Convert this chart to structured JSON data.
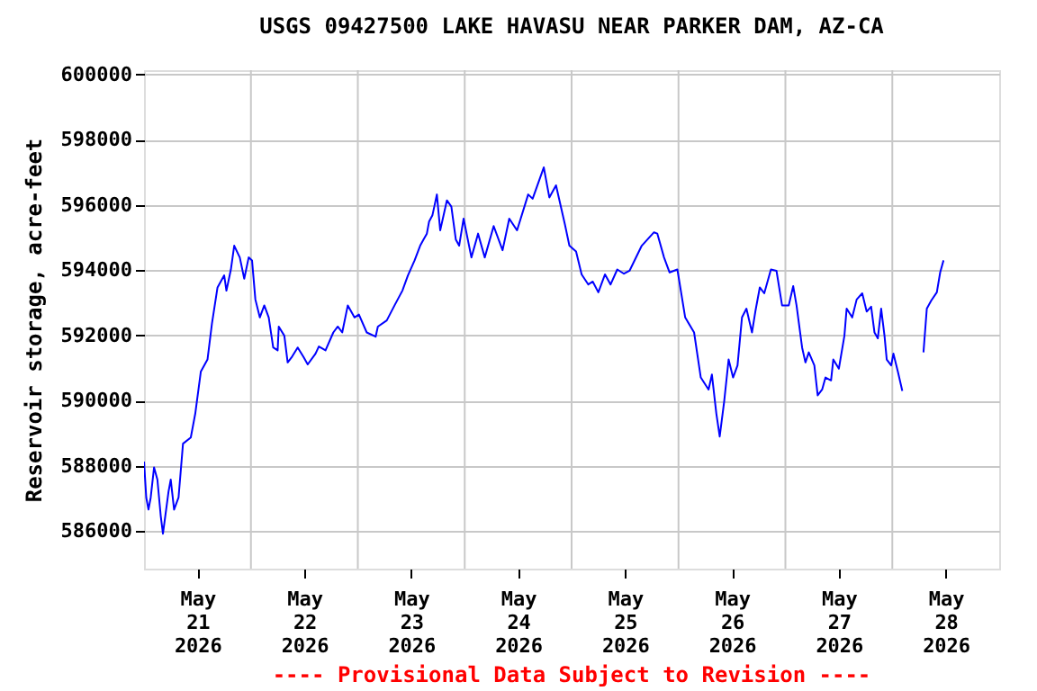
{
  "chart_data": {
    "type": "line",
    "title": "USGS 09427500 LAKE HAVASU NEAR PARKER DAM, AZ-CA",
    "ylabel": "Reservoir storage, acre-feet",
    "annotations": [
      "---- Provisional Data Subject to Revision ----"
    ],
    "xlim": [
      "2026-05-21T00:00",
      "2026-05-29T00:00"
    ],
    "xticks": [
      {
        "value": "2026-05-21T12:00",
        "label": "May\n21\n2026"
      },
      {
        "value": "2026-05-22T12:00",
        "label": "May\n22\n2026"
      },
      {
        "value": "2026-05-23T12:00",
        "label": "May\n23\n2026"
      },
      {
        "value": "2026-05-24T12:00",
        "label": "May\n24\n2026"
      },
      {
        "value": "2026-05-25T12:00",
        "label": "May\n25\n2026"
      },
      {
        "value": "2026-05-26T12:00",
        "label": "May\n26\n2026"
      },
      {
        "value": "2026-05-27T12:00",
        "label": "May\n27\n2026"
      },
      {
        "value": "2026-05-28T12:00",
        "label": "May\n28\n2026"
      },
      {
        "value": "2026-05-22T00:00",
        "label": null
      },
      {
        "value": "2026-05-23T00:00",
        "label": null
      },
      {
        "value": "2026-05-24T00:00",
        "label": null
      },
      {
        "value": "2026-05-25T00:00",
        "label": null
      },
      {
        "value": "2026-05-26T00:00",
        "label": null
      },
      {
        "value": "2026-05-27T00:00",
        "label": null
      },
      {
        "value": "2026-05-28T00:00",
        "label": null
      }
    ],
    "ylim": [
      584850,
      600130
    ],
    "yticks": [
      586000,
      588000,
      590000,
      592000,
      594000,
      596000,
      598000,
      600000
    ],
    "grid": true,
    "legend": false,
    "marker": "none",
    "line_style": "solid",
    "x": [
      "2026-05-21T00:00",
      "2026-05-21T00:30",
      "2026-05-21T01:00",
      "2026-05-21T01:30",
      "2026-05-21T02:15",
      "2026-05-21T03:00",
      "2026-05-21T03:45",
      "2026-05-21T04:15",
      "2026-05-21T05:30",
      "2026-05-21T06:00",
      "2026-05-21T06:45",
      "2026-05-21T07:45",
      "2026-05-21T08:45",
      "2026-05-21T10:30",
      "2026-05-21T11:30",
      "2026-05-21T12:45",
      "2026-05-21T14:15",
      "2026-05-21T15:15",
      "2026-05-21T16:30",
      "2026-05-21T18:00",
      "2026-05-21T18:30",
      "2026-05-21T19:30",
      "2026-05-21T20:15",
      "2026-05-21T21:30",
      "2026-05-21T22:30",
      "2026-05-21T23:30",
      "2026-05-22T00:15",
      "2026-05-22T01:00",
      "2026-05-22T02:00",
      "2026-05-22T03:00",
      "2026-05-22T04:00",
      "2026-05-22T05:00",
      "2026-05-22T06:00",
      "2026-05-22T06:15",
      "2026-05-22T07:30",
      "2026-05-22T08:15",
      "2026-05-22T09:15",
      "2026-05-22T10:30",
      "2026-05-22T11:45",
      "2026-05-22T12:45",
      "2026-05-22T14:30",
      "2026-05-22T15:15",
      "2026-05-22T16:45",
      "2026-05-22T18:30",
      "2026-05-22T19:30",
      "2026-05-22T20:30",
      "2026-05-22T21:45",
      "2026-05-22T23:15",
      "2026-05-23T00:15",
      "2026-05-23T02:00",
      "2026-05-23T04:00",
      "2026-05-23T04:30",
      "2026-05-23T06:30",
      "2026-05-23T08:15",
      "2026-05-23T10:00",
      "2026-05-23T11:15",
      "2026-05-23T12:45",
      "2026-05-23T14:00",
      "2026-05-23T14:45",
      "2026-05-23T15:30",
      "2026-05-23T16:00",
      "2026-05-23T16:45",
      "2026-05-23T17:45",
      "2026-05-23T18:30",
      "2026-05-23T20:00",
      "2026-05-23T21:00",
      "2026-05-23T22:00",
      "2026-05-23T22:45",
      "2026-05-23T23:45",
      "2026-05-24T01:30",
      "2026-05-24T03:00",
      "2026-05-24T04:30",
      "2026-05-24T06:30",
      "2026-05-24T08:30",
      "2026-05-24T10:00",
      "2026-05-24T11:45",
      "2026-05-24T14:15",
      "2026-05-24T15:15",
      "2026-05-24T17:45",
      "2026-05-24T19:00",
      "2026-05-24T20:30",
      "2026-05-24T22:30",
      "2026-05-24T23:30",
      "2026-05-25T01:00",
      "2026-05-25T02:15",
      "2026-05-25T03:45",
      "2026-05-25T04:45",
      "2026-05-25T06:00",
      "2026-05-25T07:30",
      "2026-05-25T08:45",
      "2026-05-25T10:15",
      "2026-05-25T11:45",
      "2026-05-25T13:00",
      "2026-05-25T15:45",
      "2026-05-25T18:30",
      "2026-05-25T19:15",
      "2026-05-25T20:45",
      "2026-05-25T22:00",
      "2026-05-25T23:45",
      "2026-05-26T01:30",
      "2026-05-26T03:30",
      "2026-05-26T05:00",
      "2026-05-26T06:45",
      "2026-05-26T07:30",
      "2026-05-26T08:30",
      "2026-05-26T09:15",
      "2026-05-26T10:15",
      "2026-05-26T11:15",
      "2026-05-26T12:15",
      "2026-05-26T13:15",
      "2026-05-26T14:15",
      "2026-05-26T15:15",
      "2026-05-26T16:30",
      "2026-05-26T17:15",
      "2026-05-26T18:15",
      "2026-05-26T19:15",
      "2026-05-26T20:45",
      "2026-05-26T22:00",
      "2026-05-26T23:15",
      "2026-05-27T00:45",
      "2026-05-27T01:45",
      "2026-05-27T02:30",
      "2026-05-27T03:45",
      "2026-05-27T04:30",
      "2026-05-27T05:15",
      "2026-05-27T06:30",
      "2026-05-27T07:15",
      "2026-05-27T08:15",
      "2026-05-27T09:00",
      "2026-05-27T10:15",
      "2026-05-27T10:45",
      "2026-05-27T12:00",
      "2026-05-27T13:15",
      "2026-05-27T13:45",
      "2026-05-27T15:00",
      "2026-05-27T16:00",
      "2026-05-27T17:15",
      "2026-05-27T18:15",
      "2026-05-27T19:15",
      "2026-05-27T20:00",
      "2026-05-27T20:45",
      "2026-05-27T21:30",
      "2026-05-27T22:15",
      "2026-05-27T22:45",
      "2026-05-27T23:45",
      "2026-05-28T00:15",
      "2026-05-28T01:15",
      "2026-05-28T02:15",
      "2026-05-28T04:30",
      "2026-05-28T07:00",
      "2026-05-28T07:45",
      "2026-05-28T08:45",
      "2026-05-28T10:00",
      "2026-05-28T10:45",
      "2026-05-28T11:30"
    ],
    "series": [
      {
        "color": "#0000ff",
        "values": [
          588130,
          587030,
          586660,
          587030,
          587950,
          587580,
          586470,
          585920,
          587210,
          587580,
          586660,
          587030,
          588680,
          588870,
          589600,
          590890,
          591260,
          592360,
          593470,
          593840,
          593370,
          594020,
          594750,
          594390,
          593740,
          594390,
          594300,
          593100,
          592550,
          592920,
          592550,
          591630,
          591540,
          592270,
          591990,
          591170,
          591350,
          591630,
          591350,
          591110,
          591440,
          591660,
          591540,
          592090,
          592270,
          592090,
          592920,
          592550,
          592640,
          592090,
          591960,
          592270,
          592460,
          592920,
          593370,
          593840,
          594300,
          594750,
          594940,
          595120,
          595490,
          595680,
          596320,
          595220,
          596140,
          595950,
          594940,
          594750,
          595580,
          594390,
          595120,
          594390,
          595350,
          594610,
          595580,
          595220,
          596320,
          596190,
          597150,
          596230,
          596600,
          595400,
          594750,
          594570,
          593870,
          593560,
          593650,
          593320,
          593870,
          593560,
          594020,
          593890,
          593980,
          594750,
          595160,
          595120,
          594390,
          593930,
          594020,
          592550,
          592090,
          590710,
          590340,
          590800,
          589600,
          588900,
          589970,
          591260,
          590710,
          591080,
          592550,
          592820,
          592090,
          592730,
          593470,
          593290,
          594020,
          593980,
          592920,
          592920,
          593510,
          592920,
          591630,
          591170,
          591480,
          591080,
          590160,
          590340,
          590710,
          590620,
          591260,
          590980,
          591990,
          592820,
          592550,
          593100,
          593290,
          592730,
          592880,
          592090,
          591910,
          592820,
          591990,
          591260,
          591080,
          591440,
          590890,
          590300,
          null,
          591480,
          592820,
          593070,
          593320,
          593930,
          594300
        ]
      }
    ]
  }
}
